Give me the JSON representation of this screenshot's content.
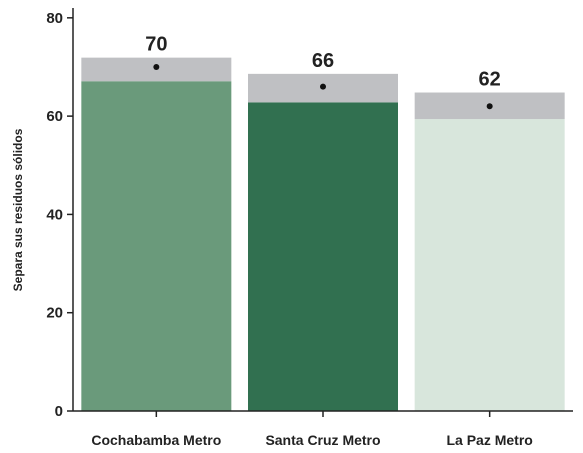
{
  "chart_data": {
    "type": "bar",
    "ylabel": "Separa sus residuos sólidos",
    "xlabel": "",
    "title": "",
    "ylim": [
      0,
      82
    ],
    "yticks": [
      0,
      20,
      40,
      60,
      80
    ],
    "categories": [
      "Cochabamba Metro",
      "Santa Cruz Metro",
      "La Paz Metro"
    ],
    "values": [
      70,
      66,
      62
    ],
    "value_labels": [
      "70",
      "66",
      "62"
    ],
    "ci_low": [
      67.1,
      62.8,
      59.4
    ],
    "ci_high": [
      71.9,
      68.6,
      64.8
    ],
    "colors": [
      "#6a9a7b",
      "#317050",
      "#d8e6dc"
    ],
    "ci_color": "#bfc0c3",
    "grid": false,
    "legend": "none"
  }
}
